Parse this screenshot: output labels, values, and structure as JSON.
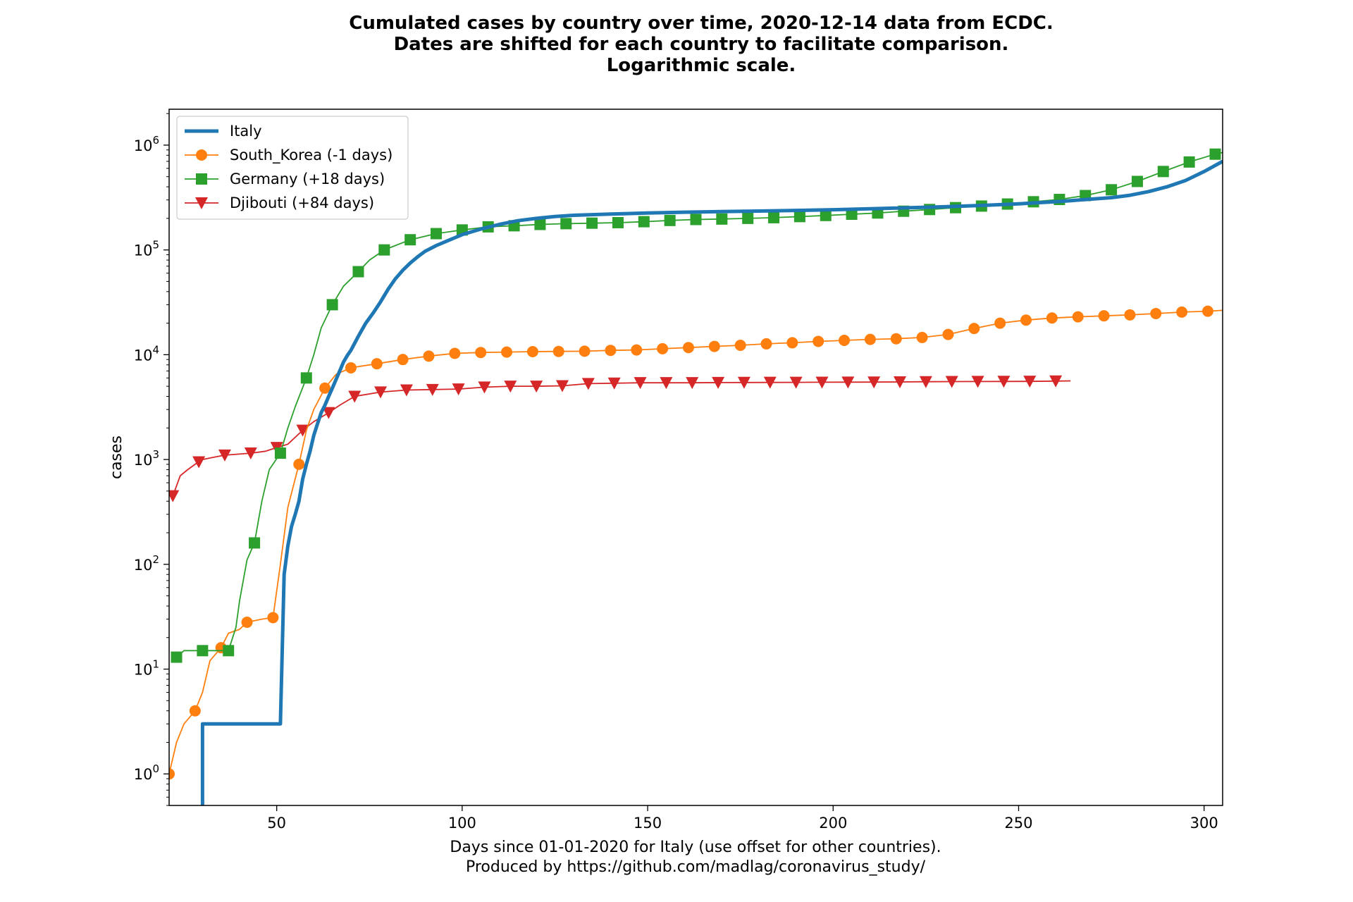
{
  "chart_data": {
    "type": "line",
    "title_lines": [
      "Cumulated cases by country over time, 2020-12-14 data from ECDC.",
      "Dates are shifted for each country to facilitate comparison.",
      "Logarithmic scale."
    ],
    "xlabel_lines": [
      "Days since 01-01-2020 for Italy (use offset for other countries).",
      "Produced by https://github.com/madlag/coronavirus_study/"
    ],
    "ylabel": "cases",
    "x_scale": "linear",
    "y_scale": "log",
    "xlim": [
      21,
      305
    ],
    "ylim": [
      0.5,
      2200000
    ],
    "x_ticks": [
      {
        "value": 50,
        "label": "50"
      },
      {
        "value": 100,
        "label": "100"
      },
      {
        "value": 150,
        "label": "150"
      },
      {
        "value": 200,
        "label": "200"
      },
      {
        "value": 250,
        "label": "250"
      },
      {
        "value": 300,
        "label": "300"
      }
    ],
    "y_ticks": [
      {
        "value": 1,
        "base": "10",
        "exp": "0"
      },
      {
        "value": 10,
        "base": "10",
        "exp": "1"
      },
      {
        "value": 100,
        "base": "10",
        "exp": "2"
      },
      {
        "value": 1000,
        "base": "10",
        "exp": "3"
      },
      {
        "value": 10000,
        "base": "10",
        "exp": "4"
      },
      {
        "value": 100000,
        "base": "10",
        "exp": "5"
      },
      {
        "value": 1000000,
        "base": "10",
        "exp": "6"
      }
    ],
    "grid": false,
    "legend_position": "top-left",
    "series": [
      {
        "name": "Italy",
        "color": "#1f77b4",
        "marker": "none",
        "line_width": 5,
        "points": [
          [
            30,
            0.3
          ],
          [
            30,
            3
          ],
          [
            51,
            3
          ],
          [
            52,
            80
          ],
          [
            53,
            150
          ],
          [
            54,
            230
          ],
          [
            55,
            300
          ],
          [
            56,
            400
          ],
          [
            57,
            650
          ],
          [
            58,
            900
          ],
          [
            59,
            1200
          ],
          [
            60,
            1700
          ],
          [
            61,
            2200
          ],
          [
            62,
            2800
          ],
          [
            63,
            3300
          ],
          [
            64,
            4000
          ],
          [
            65,
            4800
          ],
          [
            66,
            5800
          ],
          [
            67,
            7000
          ],
          [
            68,
            8500
          ],
          [
            69,
            9800
          ],
          [
            70,
            11000
          ],
          [
            72,
            15000
          ],
          [
            74,
            20000
          ],
          [
            76,
            25000
          ],
          [
            78,
            32000
          ],
          [
            80,
            42000
          ],
          [
            82,
            53000
          ],
          [
            84,
            64000
          ],
          [
            86,
            75000
          ],
          [
            88,
            86000
          ],
          [
            90,
            97000
          ],
          [
            93,
            110000
          ],
          [
            96,
            122000
          ],
          [
            100,
            140000
          ],
          [
            105,
            158000
          ],
          [
            110,
            175000
          ],
          [
            115,
            190000
          ],
          [
            120,
            200000
          ],
          [
            125,
            208000
          ],
          [
            130,
            214000
          ],
          [
            140,
            220000
          ],
          [
            150,
            225000
          ],
          [
            160,
            229000
          ],
          [
            170,
            232000
          ],
          [
            180,
            235000
          ],
          [
            190,
            238000
          ],
          [
            200,
            242000
          ],
          [
            210,
            247000
          ],
          [
            220,
            252000
          ],
          [
            230,
            258000
          ],
          [
            240,
            266000
          ],
          [
            250,
            275000
          ],
          [
            260,
            288000
          ],
          [
            270,
            306000
          ],
          [
            275,
            315000
          ],
          [
            280,
            332000
          ],
          [
            285,
            360000
          ],
          [
            290,
            400000
          ],
          [
            295,
            460000
          ],
          [
            300,
            560000
          ],
          [
            305,
            700000
          ]
        ]
      },
      {
        "name": "South_Korea (-1 days)",
        "color": "#ff7f0e",
        "marker": "circle",
        "marker_every": 7,
        "points": [
          [
            21,
            1
          ],
          [
            23,
            2
          ],
          [
            25,
            3
          ],
          [
            28,
            4
          ],
          [
            30,
            6
          ],
          [
            32,
            12
          ],
          [
            35,
            16
          ],
          [
            37,
            22
          ],
          [
            40,
            24
          ],
          [
            42,
            28
          ],
          [
            46,
            30
          ],
          [
            49,
            31
          ],
          [
            51,
            100
          ],
          [
            53,
            350
          ],
          [
            56,
            900
          ],
          [
            58,
            1900
          ],
          [
            60,
            3000
          ],
          [
            63,
            4800
          ],
          [
            66,
            6500
          ],
          [
            70,
            7500
          ],
          [
            77,
            8200
          ],
          [
            84,
            9000
          ],
          [
            91,
            9700
          ],
          [
            98,
            10300
          ],
          [
            105,
            10500
          ],
          [
            112,
            10600
          ],
          [
            119,
            10700
          ],
          [
            126,
            10750
          ],
          [
            133,
            10800
          ],
          [
            140,
            11000
          ],
          [
            147,
            11100
          ],
          [
            154,
            11400
          ],
          [
            161,
            11700
          ],
          [
            168,
            12000
          ],
          [
            175,
            12300
          ],
          [
            182,
            12700
          ],
          [
            189,
            13000
          ],
          [
            196,
            13400
          ],
          [
            203,
            13700
          ],
          [
            210,
            14000
          ],
          [
            217,
            14200
          ],
          [
            224,
            14600
          ],
          [
            231,
            15600
          ],
          [
            238,
            17800
          ],
          [
            245,
            20000
          ],
          [
            252,
            21400
          ],
          [
            259,
            22400
          ],
          [
            266,
            23000
          ],
          [
            273,
            23500
          ],
          [
            280,
            24000
          ],
          [
            287,
            24700
          ],
          [
            294,
            25500
          ],
          [
            301,
            26000
          ],
          [
            305,
            26500
          ]
        ]
      },
      {
        "name": "Germany (+18 days)",
        "color": "#2ca02c",
        "marker": "square",
        "marker_every": 7,
        "points": [
          [
            23,
            13
          ],
          [
            25,
            15
          ],
          [
            30,
            15
          ],
          [
            33,
            15
          ],
          [
            37,
            15
          ],
          [
            39,
            25
          ],
          [
            40,
            45
          ],
          [
            42,
            110
          ],
          [
            44,
            160
          ],
          [
            46,
            400
          ],
          [
            48,
            800
          ],
          [
            51,
            1150
          ],
          [
            53,
            2000
          ],
          [
            55,
            3200
          ],
          [
            58,
            6000
          ],
          [
            60,
            10000
          ],
          [
            62,
            18000
          ],
          [
            65,
            30000
          ],
          [
            68,
            45000
          ],
          [
            72,
            62000
          ],
          [
            75,
            80000
          ],
          [
            79,
            100000
          ],
          [
            86,
            125000
          ],
          [
            93,
            143000
          ],
          [
            100,
            155000
          ],
          [
            107,
            166000
          ],
          [
            114,
            170000
          ],
          [
            121,
            175000
          ],
          [
            128,
            178000
          ],
          [
            135,
            180000
          ],
          [
            142,
            182000
          ],
          [
            149,
            186000
          ],
          [
            156,
            191000
          ],
          [
            163,
            195000
          ],
          [
            170,
            197000
          ],
          [
            177,
            200000
          ],
          [
            184,
            203000
          ],
          [
            191,
            208000
          ],
          [
            198,
            213000
          ],
          [
            205,
            219000
          ],
          [
            212,
            225000
          ],
          [
            219,
            234000
          ],
          [
            226,
            243000
          ],
          [
            233,
            253000
          ],
          [
            240,
            262000
          ],
          [
            247,
            274000
          ],
          [
            254,
            288000
          ],
          [
            261,
            303000
          ],
          [
            268,
            330000
          ],
          [
            275,
            375000
          ],
          [
            282,
            450000
          ],
          [
            289,
            560000
          ],
          [
            296,
            690000
          ],
          [
            303,
            820000
          ],
          [
            305,
            850000
          ]
        ]
      },
      {
        "name": "Djibouti (+84 days)",
        "color": "#d62728",
        "marker": "triangle-down",
        "marker_every": 7,
        "points": [
          [
            22,
            450
          ],
          [
            24,
            700
          ],
          [
            26,
            800
          ],
          [
            28,
            900
          ],
          [
            30,
            1000
          ],
          [
            33,
            1050
          ],
          [
            36,
            1100
          ],
          [
            43,
            1150
          ],
          [
            47,
            1200
          ],
          [
            50,
            1300
          ],
          [
            53,
            1400
          ],
          [
            57,
            1900
          ],
          [
            60,
            2300
          ],
          [
            64,
            2800
          ],
          [
            67,
            3300
          ],
          [
            71,
            4000
          ],
          [
            78,
            4400
          ],
          [
            85,
            4600
          ],
          [
            92,
            4650
          ],
          [
            99,
            4700
          ],
          [
            106,
            4900
          ],
          [
            113,
            5000
          ],
          [
            120,
            5000
          ],
          [
            127,
            5050
          ],
          [
            134,
            5300
          ],
          [
            141,
            5350
          ],
          [
            148,
            5400
          ],
          [
            155,
            5400
          ],
          [
            162,
            5400
          ],
          [
            169,
            5420
          ],
          [
            176,
            5430
          ],
          [
            183,
            5440
          ],
          [
            190,
            5450
          ],
          [
            197,
            5460
          ],
          [
            204,
            5470
          ],
          [
            211,
            5480
          ],
          [
            218,
            5500
          ],
          [
            225,
            5520
          ],
          [
            232,
            5540
          ],
          [
            239,
            5550
          ],
          [
            246,
            5560
          ],
          [
            253,
            5570
          ],
          [
            260,
            5600
          ],
          [
            264,
            5630
          ]
        ]
      }
    ]
  }
}
